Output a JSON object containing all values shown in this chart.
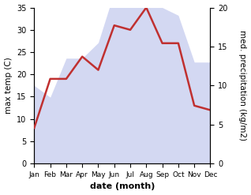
{
  "months": [
    "Jan",
    "Feb",
    "Mar",
    "Apr",
    "May",
    "Jun",
    "Jul",
    "Aug",
    "Sep",
    "Oct",
    "Nov",
    "Dec"
  ],
  "month_positions": [
    1,
    2,
    3,
    4,
    5,
    6,
    7,
    8,
    9,
    10,
    11,
    12
  ],
  "temperature": [
    8,
    19,
    19,
    24,
    21,
    31,
    30,
    35,
    27,
    27,
    13,
    12
  ],
  "precipitation": [
    10,
    8.5,
    13.5,
    13.5,
    15.5,
    22,
    23,
    20,
    20,
    19,
    13,
    13
  ],
  "temp_color": "#c03030",
  "precip_fill_color": "#b0b8e8",
  "precip_fill_alpha": 0.55,
  "xlabel": "date (month)",
  "ylabel_left": "max temp (C)",
  "ylabel_right": "med. precipitation (kg/m2)",
  "ylim_left": [
    0,
    35
  ],
  "ylim_right": [
    0,
    20
  ],
  "yticks_left": [
    0,
    5,
    10,
    15,
    20,
    25,
    30,
    35
  ],
  "yticks_right": [
    0,
    5,
    10,
    15,
    20
  ],
  "background_color": "#ffffff",
  "line_width": 1.8,
  "xlabel_fontsize": 8,
  "ylabel_fontsize": 7.5
}
